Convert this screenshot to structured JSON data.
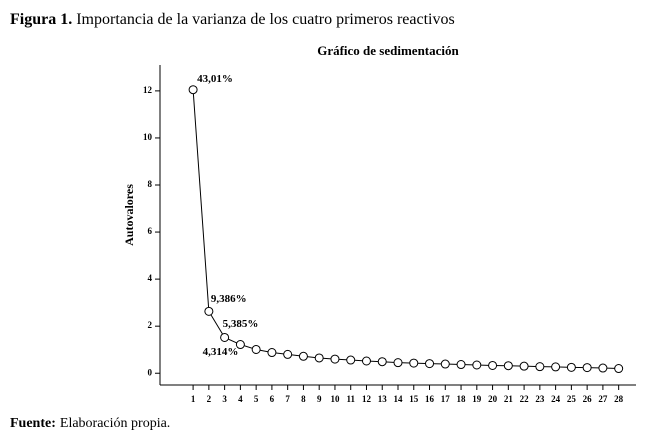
{
  "chart_data": {
    "type": "line",
    "figure_label": "Figura 1.",
    "caption": "Importancia de la varianza de los cuatro primeros reactivos",
    "title": "Gráfico de sedimentación",
    "y_label": "Autovalores",
    "source_label": "Fuente:",
    "source": "Elaboración propia.",
    "x": [
      1,
      2,
      3,
      4,
      5,
      6,
      7,
      8,
      9,
      10,
      11,
      12,
      13,
      14,
      15,
      16,
      17,
      18,
      19,
      20,
      21,
      22,
      23,
      24,
      25,
      26,
      27,
      28
    ],
    "values": [
      12.05,
      2.63,
      1.52,
      1.22,
      1.01,
      0.88,
      0.8,
      0.72,
      0.65,
      0.6,
      0.56,
      0.52,
      0.49,
      0.45,
      0.43,
      0.41,
      0.39,
      0.37,
      0.35,
      0.33,
      0.32,
      0.3,
      0.28,
      0.27,
      0.25,
      0.24,
      0.22,
      0.2
    ],
    "annotations": [
      "43,01%",
      "9,386%",
      "5,385%",
      "4,314%"
    ],
    "color": "#000000",
    "xlim": [
      -1.1,
      29.1
    ],
    "xticks": [
      1,
      2,
      3,
      4,
      5,
      6,
      7,
      8,
      9,
      10,
      11,
      12,
      13,
      14,
      15,
      16,
      17,
      18,
      19,
      20,
      21,
      22,
      23,
      24,
      25,
      26,
      27,
      28
    ],
    "ylim": [
      -0.5,
      13.1
    ],
    "yticks": [
      0,
      2,
      4,
      6,
      8,
      10,
      12
    ]
  }
}
